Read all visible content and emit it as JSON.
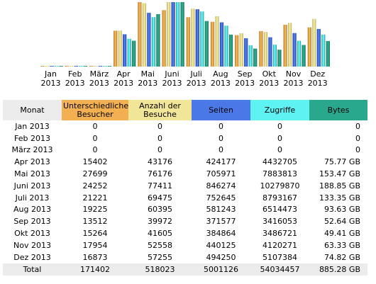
{
  "colors": {
    "visitors": "#f3b052",
    "visits": "#f1e697",
    "pages": "#4a78e6",
    "hits": "#5ff2f2",
    "bytes": "#2aa88d",
    "header_bg": "#ececec"
  },
  "headers": {
    "month": "Monat",
    "visitors": "Unterschiedliche Besucher",
    "visits": "Anzahl der Besuche",
    "pages": "Seiten",
    "hits": "Zugriffe",
    "bytes": "Bytes"
  },
  "rows": [
    {
      "month": "Jan 2013",
      "visitors": "0",
      "visits": "0",
      "pages": "0",
      "hits": "0",
      "bytes": "0"
    },
    {
      "month": "Feb 2013",
      "visitors": "0",
      "visits": "0",
      "pages": "0",
      "hits": "0",
      "bytes": "0"
    },
    {
      "month": "März 2013",
      "visitors": "0",
      "visits": "0",
      "pages": "0",
      "hits": "0",
      "bytes": "0"
    },
    {
      "month": "Apr 2013",
      "visitors": "15402",
      "visits": "43176",
      "pages": "424177",
      "hits": "4432705",
      "bytes": "75.77 GB"
    },
    {
      "month": "Mai 2013",
      "visitors": "27699",
      "visits": "76176",
      "pages": "705971",
      "hits": "7883813",
      "bytes": "153.47 GB"
    },
    {
      "month": "Juni 2013",
      "visitors": "24252",
      "visits": "77411",
      "pages": "846274",
      "hits": "10279870",
      "bytes": "188.85 GB"
    },
    {
      "month": "Juli 2013",
      "visitors": "21221",
      "visits": "69475",
      "pages": "752645",
      "hits": "8793167",
      "bytes": "133.35 GB"
    },
    {
      "month": "Aug 2013",
      "visitors": "19225",
      "visits": "60395",
      "pages": "581243",
      "hits": "6514473",
      "bytes": "93.63 GB"
    },
    {
      "month": "Sep 2013",
      "visitors": "13512",
      "visits": "39972",
      "pages": "371577",
      "hits": "3416053",
      "bytes": "52.64 GB"
    },
    {
      "month": "Okt 2013",
      "visitors": "15264",
      "visits": "41605",
      "pages": "384864",
      "hits": "3486721",
      "bytes": "49.41 GB"
    },
    {
      "month": "Nov 2013",
      "visitors": "17954",
      "visits": "52558",
      "pages": "440125",
      "hits": "4120271",
      "bytes": "63.33 GB"
    },
    {
      "month": "Dez 2013",
      "visitors": "16873",
      "visits": "57255",
      "pages": "494250",
      "hits": "5107384",
      "bytes": "74.82 GB"
    }
  ],
  "total": {
    "month": "Total",
    "visitors": "171402",
    "visits": "518023",
    "pages": "5001126",
    "hits": "54034457",
    "bytes": "885.28 GB"
  },
  "chart_data": {
    "type": "bar",
    "categories": [
      [
        "Jan",
        "2013"
      ],
      [
        "Feb",
        "2013"
      ],
      [
        "März",
        "2013"
      ],
      [
        "Apr",
        "2013"
      ],
      [
        "Mai",
        "2013"
      ],
      [
        "Juni",
        "2013"
      ],
      [
        "Juli",
        "2013"
      ],
      [
        "Aug",
        "2013"
      ],
      [
        "Sep",
        "2013"
      ],
      [
        "Okt",
        "2013"
      ],
      [
        "Nov",
        "2013"
      ],
      [
        "Dez",
        "2013"
      ]
    ],
    "series": [
      {
        "key": "visitors",
        "values": [
          0,
          0,
          0,
          15402,
          27699,
          24252,
          21221,
          19225,
          13512,
          15264,
          17954,
          16873
        ]
      },
      {
        "key": "visits",
        "values": [
          0,
          0,
          0,
          43176,
          76176,
          77411,
          69475,
          60395,
          39972,
          41605,
          52558,
          57255
        ]
      },
      {
        "key": "pages",
        "values": [
          0,
          0,
          0,
          424177,
          705971,
          846274,
          752645,
          581243,
          371577,
          384864,
          440125,
          494250
        ]
      },
      {
        "key": "hits",
        "values": [
          0,
          0,
          0,
          4432705,
          7883813,
          10279870,
          8793167,
          6514473,
          3416053,
          3486721,
          4120271,
          5107384
        ]
      },
      {
        "key": "bytes",
        "values": [
          0,
          0,
          0,
          75.77,
          153.47,
          188.85,
          133.35,
          93.63,
          52.64,
          49.41,
          63.33,
          74.82
        ]
      }
    ],
    "series_max": {
      "visitors": 27699,
      "visits": 77411,
      "pages": 846274,
      "hits": 10279870,
      "bytes": 188.85
    }
  }
}
